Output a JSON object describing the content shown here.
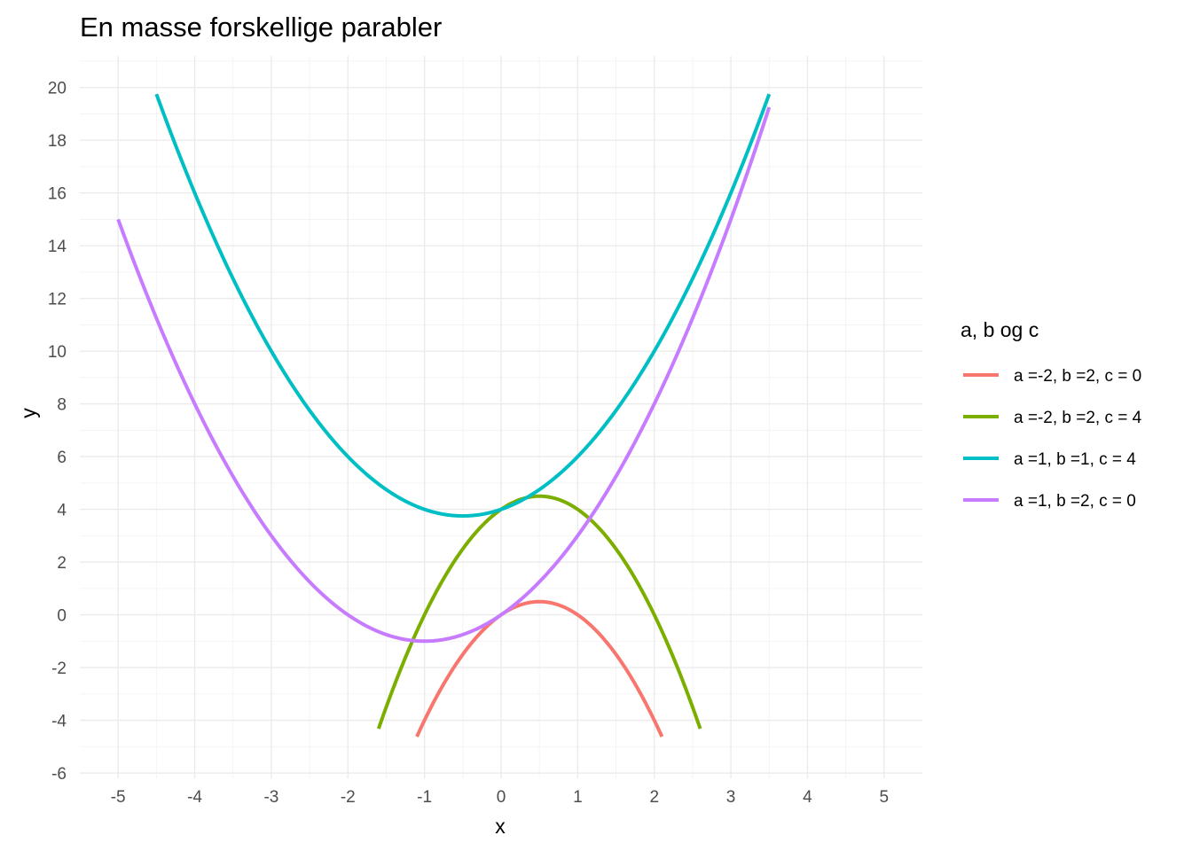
{
  "chart_data": {
    "type": "line",
    "title": "En masse forskellige parabler",
    "xlabel": "x",
    "ylabel": "y",
    "xlim": [
      -5.5,
      5.5
    ],
    "ylim": [
      -6.2,
      21.2
    ],
    "x_ticks": [
      -5,
      -4,
      -3,
      -2,
      -1,
      0,
      1,
      2,
      3,
      4,
      5
    ],
    "y_ticks": [
      -6,
      -4,
      -2,
      0,
      2,
      4,
      6,
      8,
      10,
      12,
      14,
      16,
      18,
      20
    ],
    "x_tick_labels": [
      "-5",
      "-4",
      "-3",
      "-2",
      "-1",
      "0",
      "1",
      "2",
      "3",
      "4",
      "5"
    ],
    "y_tick_labels": [
      "-6",
      "-4",
      "-2",
      "0",
      "2",
      "4",
      "6",
      "8",
      "10",
      "12",
      "14",
      "16",
      "18",
      "20"
    ],
    "grid": true,
    "legend": {
      "title": "a, b og c",
      "position": "right"
    },
    "series": [
      {
        "name": "a =-2, b =2, c = 0",
        "color": "#F8766D",
        "a": -2,
        "b": 2,
        "c": 0,
        "x_range": [
          -1.1,
          2.1
        ]
      },
      {
        "name": "a =-2, b =2, c = 4",
        "color": "#7CAE00",
        "a": -2,
        "b": 2,
        "c": 4,
        "x_range": [
          -1.6,
          2.6
        ]
      },
      {
        "name": "a =1, b =1, c = 4",
        "color": "#00BFC4",
        "a": 1,
        "b": 1,
        "c": 4,
        "x_range": [
          -4.5,
          3.5
        ]
      },
      {
        "name": "a =1, b =2, c = 0",
        "color": "#C77CFF",
        "a": 1,
        "b": 2,
        "c": 0,
        "x_range": [
          -5.0,
          3.5
        ]
      }
    ]
  }
}
